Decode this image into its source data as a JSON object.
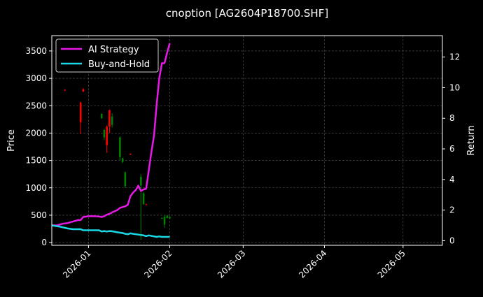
{
  "chart_data": {
    "type": "line",
    "title": "cnoption [AG2604P18700.SHF]",
    "ylabel_left": "Price",
    "ylabel_right": "Return",
    "grid": true,
    "legend_placement": "top-left",
    "x_range": [
      "2025-12-18",
      "2026-05-16"
    ],
    "x_ticks": [
      {
        "date": "2026-01-01",
        "label": "2026-01"
      },
      {
        "date": "2026-02-01",
        "label": "2026-02"
      },
      {
        "date": "2026-03-01",
        "label": "2026-03"
      },
      {
        "date": "2026-04-01",
        "label": "2026-04"
      },
      {
        "date": "2026-05-01",
        "label": "2026-05"
      }
    ],
    "y_left": {
      "range": [
        -50,
        3780
      ],
      "ticks": [
        0,
        500,
        1000,
        1500,
        2000,
        2500,
        3000,
        3500
      ]
    },
    "y_right": {
      "range": [
        -0.3,
        13.4
      ],
      "ticks": [
        0,
        2,
        4,
        6,
        8,
        10,
        12
      ]
    },
    "candles": [
      {
        "date": "2025-12-23",
        "open": 2790,
        "high": 2800,
        "low": 2770,
        "close": 2780
      },
      {
        "date": "2025-12-29",
        "open": 2560,
        "high": 2570,
        "low": 1980,
        "close": 2200
      },
      {
        "date": "2025-12-30",
        "open": 2800,
        "high": 2820,
        "low": 2750,
        "close": 2760
      },
      {
        "date": "2026-01-06",
        "open": 2270,
        "high": 2360,
        "low": 2260,
        "close": 2350
      },
      {
        "date": "2026-01-07",
        "open": 1920,
        "high": 2080,
        "low": 1870,
        "close": 2060
      },
      {
        "date": "2026-01-08",
        "open": 2120,
        "high": 2140,
        "low": 1640,
        "close": 1780
      },
      {
        "date": "2026-01-09",
        "open": 2420,
        "high": 2430,
        "low": 2000,
        "close": 2120
      },
      {
        "date": "2026-01-10",
        "open": 2150,
        "high": 2360,
        "low": 2100,
        "close": 2300
      },
      {
        "date": "2026-01-13",
        "open": 1560,
        "high": 1940,
        "low": 1500,
        "close": 1920
      },
      {
        "date": "2026-01-14",
        "open": 1470,
        "high": 1550,
        "low": 1450,
        "close": 1540
      },
      {
        "date": "2026-01-15",
        "open": 1030,
        "high": 1300,
        "low": 1000,
        "close": 1280
      },
      {
        "date": "2026-01-17",
        "open": 1620,
        "high": 1630,
        "low": 1600,
        "close": 1610
      },
      {
        "date": "2026-01-21",
        "open": 1040,
        "high": 1250,
        "low": 50,
        "close": 1200
      },
      {
        "date": "2026-01-22",
        "open": 700,
        "high": 920,
        "low": 690,
        "close": 900
      },
      {
        "date": "2026-01-23",
        "open": 700,
        "high": 710,
        "low": 680,
        "close": 690
      },
      {
        "date": "2026-01-29",
        "open": 440,
        "high": 460,
        "low": 430,
        "close": 450
      },
      {
        "date": "2026-01-30",
        "open": 330,
        "high": 500,
        "low": 270,
        "close": 470
      },
      {
        "date": "2026-01-31",
        "open": 450,
        "high": 500,
        "low": 440,
        "close": 490
      },
      {
        "date": "2026-02-01",
        "open": 440,
        "high": 480,
        "low": 430,
        "close": 470
      }
    ],
    "series": [
      {
        "name": "AI Strategy",
        "color": "#e619e6",
        "axis": "right",
        "x": [
          "2025-12-18",
          "2025-12-20",
          "2025-12-22",
          "2025-12-24",
          "2025-12-26",
          "2025-12-28",
          "2025-12-29",
          "2025-12-30",
          "2026-01-01",
          "2026-01-03",
          "2026-01-05",
          "2026-01-06",
          "2026-01-07",
          "2026-01-08",
          "2026-01-09",
          "2026-01-10",
          "2026-01-12",
          "2026-01-13",
          "2026-01-15",
          "2026-01-16",
          "2026-01-17",
          "2026-01-18",
          "2026-01-19",
          "2026-01-20",
          "2026-01-21",
          "2026-01-22",
          "2026-01-23",
          "2026-01-25",
          "2026-01-26",
          "2026-01-27",
          "2026-01-28",
          "2026-01-29",
          "2026-01-30",
          "2026-01-31",
          "2026-02-01"
        ],
        "values": [
          1.0,
          1.0,
          1.1,
          1.15,
          1.25,
          1.35,
          1.35,
          1.55,
          1.6,
          1.6,
          1.58,
          1.55,
          1.6,
          1.7,
          1.75,
          1.85,
          2.0,
          2.15,
          2.25,
          2.35,
          2.9,
          3.15,
          3.3,
          3.6,
          3.25,
          3.35,
          3.4,
          5.8,
          6.9,
          8.9,
          10.6,
          11.6,
          11.6,
          12.3,
          12.9
        ]
      },
      {
        "name": "Buy-and-Hold",
        "color": "#19d9e6",
        "axis": "right",
        "x": [
          "2025-12-18",
          "2025-12-21",
          "2025-12-24",
          "2025-12-26",
          "2025-12-29",
          "2025-12-30",
          "2026-01-02",
          "2026-01-05",
          "2026-01-06",
          "2026-01-07",
          "2026-01-08",
          "2026-01-09",
          "2026-01-10",
          "2026-01-12",
          "2026-01-14",
          "2026-01-15",
          "2026-01-16",
          "2026-01-17",
          "2026-01-18",
          "2026-01-20",
          "2026-01-21",
          "2026-01-22",
          "2026-01-23",
          "2026-01-24",
          "2026-01-26",
          "2026-01-27",
          "2026-01-28",
          "2026-01-29",
          "2026-01-31",
          "2026-02-01"
        ],
        "values": [
          1.0,
          0.92,
          0.8,
          0.75,
          0.75,
          0.68,
          0.68,
          0.68,
          0.6,
          0.63,
          0.6,
          0.63,
          0.62,
          0.55,
          0.5,
          0.45,
          0.42,
          0.48,
          0.45,
          0.4,
          0.37,
          0.35,
          0.3,
          0.35,
          0.28,
          0.25,
          0.28,
          0.25,
          0.25,
          0.25
        ]
      }
    ],
    "candle_colors": {
      "up": "#008000",
      "down": "#ff0000"
    }
  }
}
